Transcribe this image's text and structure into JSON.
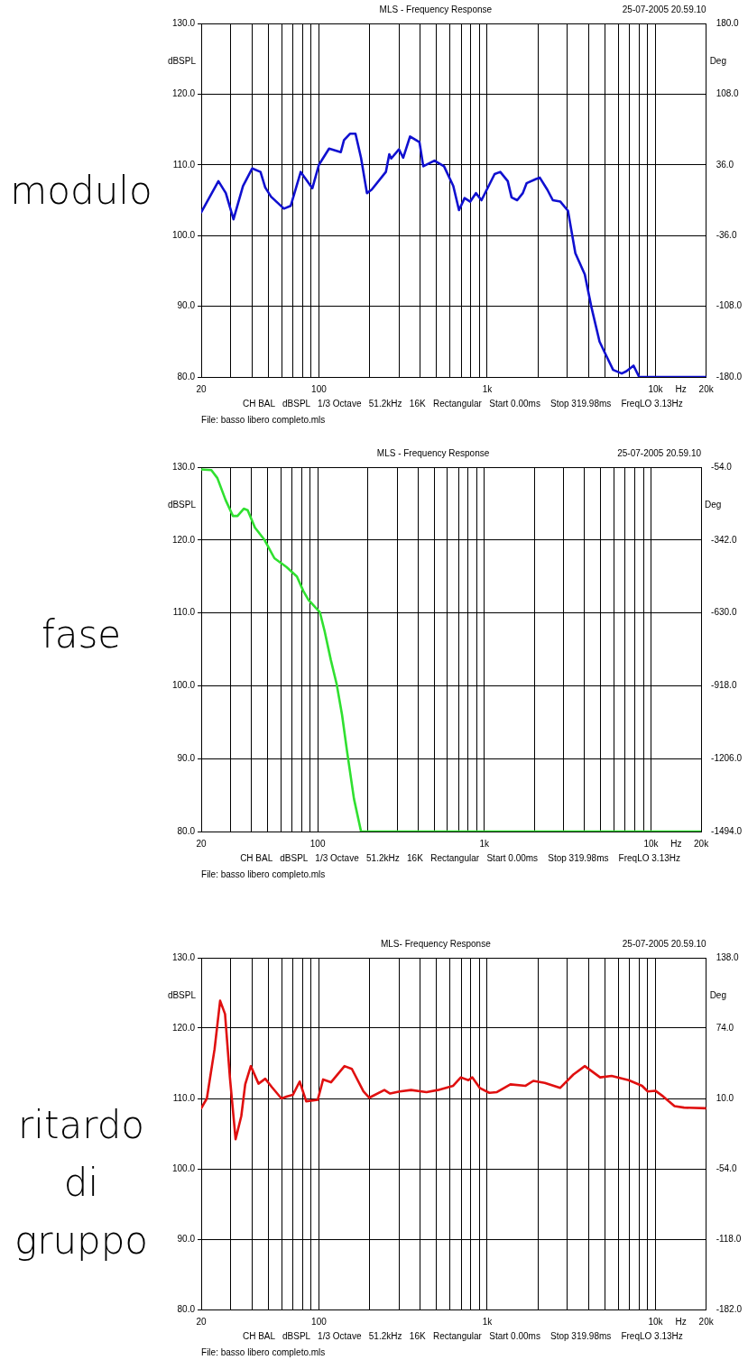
{
  "chart_data": [
    {
      "type": "line",
      "title": "modulo",
      "subtitle": "MLS - Frequency Response",
      "ylabel": "dBSPL",
      "y2label": "Deg",
      "xlabel": "Hz",
      "log": "x",
      "grid": true,
      "legend": false,
      "marker": "none",
      "xlim": [
        20,
        20000
      ],
      "xticks": [
        {
          "value": 20,
          "label": "20"
        },
        {
          "value": 30,
          "label": null
        },
        {
          "value": 40,
          "label": null
        },
        {
          "value": 50,
          "label": null
        },
        {
          "value": 60,
          "label": null
        },
        {
          "value": 70,
          "label": null
        },
        {
          "value": 80,
          "label": null
        },
        {
          "value": 90,
          "label": null
        },
        {
          "value": 100,
          "label": "100"
        },
        {
          "value": 200,
          "label": null
        },
        {
          "value": 300,
          "label": null
        },
        {
          "value": 400,
          "label": null
        },
        {
          "value": 500,
          "label": null
        },
        {
          "value": 600,
          "label": null
        },
        {
          "value": 700,
          "label": null
        },
        {
          "value": 800,
          "label": null
        },
        {
          "value": 900,
          "label": null
        },
        {
          "value": 1000,
          "label": "1k"
        },
        {
          "value": 2000,
          "label": null
        },
        {
          "value": 3000,
          "label": null
        },
        {
          "value": 4000,
          "label": null
        },
        {
          "value": 5000,
          "label": null
        },
        {
          "value": 6000,
          "label": null
        },
        {
          "value": 7000,
          "label": null
        },
        {
          "value": 8000,
          "label": null
        },
        {
          "value": 9000,
          "label": null
        },
        {
          "value": 10000,
          "label": "10k"
        },
        {
          "value": 20000,
          "label": "20k"
        }
      ],
      "ylim": [
        80,
        130
      ],
      "yticks": [
        {
          "value": 80,
          "label": "80.0"
        },
        {
          "value": 90,
          "label": "90.0"
        },
        {
          "value": 100,
          "label": "100.0"
        },
        {
          "value": 110,
          "label": "110.0"
        },
        {
          "value": 120,
          "label": "120.0"
        },
        {
          "value": 130,
          "label": "130.0"
        }
      ],
      "y2lim": [
        -180,
        180
      ],
      "y2ticks": [
        {
          "value": -180,
          "label": "-180.0"
        },
        {
          "value": -108,
          "label": "-108.0"
        },
        {
          "value": -36,
          "label": "-36.0"
        },
        {
          "value": 36,
          "label": "36.0"
        },
        {
          "value": 108,
          "label": "108.0"
        },
        {
          "value": 180,
          "label": "180.0"
        }
      ],
      "annotations": [
        "25-07-2005 20.59.10",
        "CH BAL   dBSPL   1/3 Octave   51.2kHz   16K   Rectangular   Start 0.00ms    Stop 319.98ms    FreqLO 3.13Hz",
        "File: basso libero completo.mls"
      ],
      "series": [
        {
          "color": "#1010d0",
          "x": [
            20,
            25.3,
            28,
            31.1,
            35.4,
            40.2,
            45,
            48,
            52,
            62,
            68,
            78,
            91.5,
            100,
            115,
            135,
            141,
            153,
            165,
            178,
            193,
            206,
            250,
            262,
            269,
            299,
            317,
            348,
            396,
            417,
            486,
            554,
            629,
            680,
            734,
            793,
            857,
            925,
            1107,
            1196,
            1325,
            1396,
            1507,
            1628,
            1714,
            1950,
            2052,
            2275,
            2455,
            2722,
            3020,
            3340,
            3800,
            4150,
            4650,
            5100,
            5600,
            6300,
            6700,
            7400,
            8000,
            20000
          ],
          "values": [
            103.3,
            107.7,
            106,
            102.3,
            107,
            109.5,
            109,
            106.8,
            105.5,
            103.8,
            104.2,
            109,
            106.7,
            110,
            112.3,
            111.8,
            113.5,
            114.4,
            114.4,
            111,
            106,
            106.5,
            109,
            111.5,
            110.9,
            112.2,
            111,
            114,
            113.2,
            109.8,
            110.6,
            109.8,
            107,
            103.6,
            105.3,
            104.8,
            106,
            105,
            108.7,
            109,
            107.7,
            105.4,
            105,
            106,
            107.4,
            108,
            108.2,
            106.5,
            105,
            104.8,
            103.5,
            97.5,
            94.5,
            90,
            85,
            83,
            81,
            80.5,
            80.8,
            81.6,
            80,
            80
          ]
        }
      ]
    },
    {
      "type": "line",
      "title": "fase",
      "subtitle": "MLS - Frequency Response",
      "ylabel": "dBSPL",
      "y2label": "Deg",
      "xlabel": "Hz",
      "log": "x",
      "grid": true,
      "legend": false,
      "marker": "none",
      "xlim": [
        20,
        20000
      ],
      "xticks": [
        {
          "value": 20,
          "label": "20"
        },
        {
          "value": 30,
          "label": null
        },
        {
          "value": 40,
          "label": null
        },
        {
          "value": 50,
          "label": null
        },
        {
          "value": 60,
          "label": null
        },
        {
          "value": 70,
          "label": null
        },
        {
          "value": 80,
          "label": null
        },
        {
          "value": 90,
          "label": null
        },
        {
          "value": 100,
          "label": "100"
        },
        {
          "value": 200,
          "label": null
        },
        {
          "value": 300,
          "label": null
        },
        {
          "value": 400,
          "label": null
        },
        {
          "value": 500,
          "label": null
        },
        {
          "value": 600,
          "label": null
        },
        {
          "value": 700,
          "label": null
        },
        {
          "value": 800,
          "label": null
        },
        {
          "value": 900,
          "label": null
        },
        {
          "value": 1000,
          "label": "1k"
        },
        {
          "value": 2000,
          "label": null
        },
        {
          "value": 3000,
          "label": null
        },
        {
          "value": 4000,
          "label": null
        },
        {
          "value": 5000,
          "label": null
        },
        {
          "value": 6000,
          "label": null
        },
        {
          "value": 7000,
          "label": null
        },
        {
          "value": 8000,
          "label": null
        },
        {
          "value": 9000,
          "label": null
        },
        {
          "value": 10000,
          "label": "10k"
        },
        {
          "value": 20000,
          "label": "20k"
        }
      ],
      "ylim": [
        80,
        130
      ],
      "yticks": [
        {
          "value": 80,
          "label": "80.0"
        },
        {
          "value": 90,
          "label": "90.0"
        },
        {
          "value": 100,
          "label": "100.0"
        },
        {
          "value": 110,
          "label": "110.0"
        },
        {
          "value": 120,
          "label": "120.0"
        },
        {
          "value": 130,
          "label": "130.0"
        }
      ],
      "y2lim": [
        -1494,
        -54
      ],
      "y2ticks": [
        {
          "value": -1494,
          "label": "-1494.0"
        },
        {
          "value": -1206,
          "label": "-1206.0"
        },
        {
          "value": -918,
          "label": "-918.0"
        },
        {
          "value": -630,
          "label": "-630.0"
        },
        {
          "value": -342,
          "label": "-342.0"
        },
        {
          "value": -54,
          "label": "-54.0"
        }
      ],
      "annotations": [
        "25-07-2005 20.59.10",
        "CH BAL   dBSPL   1/3 Octave   51.2kHz   16K   Rectangular   Start 0.00ms    Stop 319.98ms    FreqLO 3.13Hz",
        "File: basso libero completo.mls"
      ],
      "series": [
        {
          "color": "#30e030",
          "x": [
            20,
            23,
            25,
            28,
            31,
            33,
            36,
            38,
            42,
            48,
            55,
            65,
            75,
            82,
            88,
            103,
            110,
            120,
            130,
            140,
            150,
            165,
            182,
            20000
          ],
          "values": [
            129.7,
            129.6,
            128.5,
            125.5,
            123.3,
            123.3,
            124.3,
            124.1,
            121.7,
            120,
            117.5,
            116.3,
            115,
            113,
            111.8,
            110.1,
            107.5,
            103.5,
            100.2,
            96,
            91,
            84.5,
            80,
            80
          ]
        }
      ]
    },
    {
      "type": "line",
      "title": "ritardo di gruppo",
      "subtitle": "MLS- Frequency Response",
      "ylabel": "dBSPL",
      "y2label": "Deg",
      "xlabel": "Hz",
      "log": "x",
      "grid": true,
      "legend": false,
      "marker": "none",
      "xlim": [
        20,
        20000
      ],
      "xticks": [
        {
          "value": 20,
          "label": "20"
        },
        {
          "value": 30,
          "label": null
        },
        {
          "value": 40,
          "label": null
        },
        {
          "value": 50,
          "label": null
        },
        {
          "value": 60,
          "label": null
        },
        {
          "value": 70,
          "label": null
        },
        {
          "value": 80,
          "label": null
        },
        {
          "value": 90,
          "label": null
        },
        {
          "value": 100,
          "label": "100"
        },
        {
          "value": 200,
          "label": null
        },
        {
          "value": 300,
          "label": null
        },
        {
          "value": 400,
          "label": null
        },
        {
          "value": 500,
          "label": null
        },
        {
          "value": 600,
          "label": null
        },
        {
          "value": 700,
          "label": null
        },
        {
          "value": 800,
          "label": null
        },
        {
          "value": 900,
          "label": null
        },
        {
          "value": 1000,
          "label": "1k"
        },
        {
          "value": 2000,
          "label": null
        },
        {
          "value": 3000,
          "label": null
        },
        {
          "value": 4000,
          "label": null
        },
        {
          "value": 5000,
          "label": null
        },
        {
          "value": 6000,
          "label": null
        },
        {
          "value": 7000,
          "label": null
        },
        {
          "value": 8000,
          "label": null
        },
        {
          "value": 9000,
          "label": null
        },
        {
          "value": 10000,
          "label": "10k"
        },
        {
          "value": 20000,
          "label": "20k"
        }
      ],
      "ylim": [
        80,
        130
      ],
      "yticks": [
        {
          "value": 80,
          "label": "80.0"
        },
        {
          "value": 90,
          "label": "90.0"
        },
        {
          "value": 100,
          "label": "100.0"
        },
        {
          "value": 110,
          "label": "110.0"
        },
        {
          "value": 120,
          "label": "120.0"
        },
        {
          "value": 130,
          "label": "130.0"
        }
      ],
      "y2lim": [
        -182,
        138
      ],
      "y2ticks": [
        {
          "value": -182,
          "label": "-182.0"
        },
        {
          "value": -118,
          "label": "-118.0"
        },
        {
          "value": -54,
          "label": "-54.0"
        },
        {
          "value": 10,
          "label": "10.0"
        },
        {
          "value": 74,
          "label": "74.0"
        },
        {
          "value": 138,
          "label": "138.0"
        }
      ],
      "annotations": [
        "25-07-2005 20.59.10",
        "CH BAL   dBSPL   1/3 Octave   51.2kHz   16K   Rectangular   Start 0.00ms    Stop 319.98ms    FreqLO 3.13Hz",
        "File: basso libero completo.mls"
      ],
      "series": [
        {
          "color": "#e01010",
          "x": [
            20,
            21.6,
            24,
            25.9,
            27.7,
            29.6,
            32,
            34.6,
            36.5,
            39.4,
            43.8,
            48,
            52.6,
            59.9,
            64.7,
            70,
            76.9,
            84.1,
            98.4,
            106,
            118,
            142,
            157,
            184,
            199,
            245,
            265,
            302,
            353,
            436,
            510,
            628,
            697,
            773,
            815,
            903,
            1030,
            1143,
            1374,
            1691,
            1880,
            2198,
            2711,
            3250,
            3801,
            4689,
            5486,
            6935,
            8321,
            8997,
            9980,
            11090,
            12970,
            14770,
            20000
          ],
          "values": [
            108.6,
            110,
            117,
            123.9,
            122,
            113,
            104.2,
            107.5,
            112,
            114.6,
            112.1,
            112.8,
            111.6,
            110,
            110.3,
            110.5,
            112.4,
            109.6,
            109.8,
            112.7,
            112.3,
            114.6,
            114.2,
            111,
            110.1,
            111.2,
            110.7,
            111,
            111.2,
            110.9,
            111.2,
            111.8,
            113,
            112.6,
            113,
            111.5,
            110.8,
            110.9,
            112,
            111.8,
            112.5,
            112.2,
            111.5,
            113.4,
            114.6,
            113,
            113.2,
            112.6,
            111.8,
            111,
            111.1,
            110.3,
            108.9,
            108.7,
            108.6
          ]
        }
      ]
    }
  ]
}
